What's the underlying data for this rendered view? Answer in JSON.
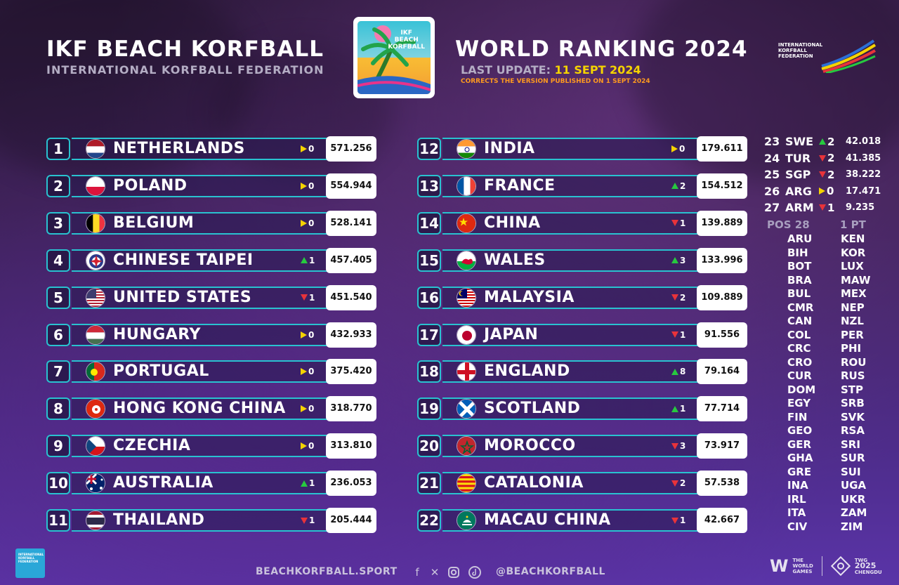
{
  "header": {
    "title_left": "IKF BEACH KORFBALL",
    "subtitle_left": "INTERNATIONAL KORFBALL FEDERATION",
    "title_right": "WORLD RANKING 2024",
    "last_update_label": "LAST UPDATE:",
    "last_update_value": "11 SEPT 2024",
    "correction_note": "CORRECTS THE VERSION PUBLISHED ON 1 SEPT 2024",
    "logo_text_1": "IKF",
    "logo_text_2": "BEACH",
    "logo_text_3": "KORFBALL",
    "ikf_logo_line1": "INTERNATIONAL",
    "ikf_logo_line2": "KORFBALL",
    "ikf_logo_line3": "FEDERATION"
  },
  "colors": {
    "accent": "#29c2d0",
    "up": "#27c93f",
    "down": "#e8333a",
    "same": "#f5d300",
    "correction": "#ff9a1f"
  },
  "rankings_left": [
    {
      "pos": "1",
      "country": "NETHERLANDS",
      "flag": "netherlands-flag-icon",
      "trend": "same",
      "change": "0",
      "points": "571.256"
    },
    {
      "pos": "2",
      "country": "POLAND",
      "flag": "poland-flag-icon",
      "trend": "same",
      "change": "0",
      "points": "554.944"
    },
    {
      "pos": "3",
      "country": "BELGIUM",
      "flag": "belgium-flag-icon",
      "trend": "same",
      "change": "0",
      "points": "528.141"
    },
    {
      "pos": "4",
      "country": "CHINESE TAIPEI",
      "flag": "chinese-taipei-flag-icon",
      "trend": "up",
      "change": "1",
      "points": "457.405"
    },
    {
      "pos": "5",
      "country": "UNITED STATES",
      "flag": "united-states-flag-icon",
      "trend": "down",
      "change": "1",
      "points": "451.540"
    },
    {
      "pos": "6",
      "country": "HUNGARY",
      "flag": "hungary-flag-icon",
      "trend": "same",
      "change": "0",
      "points": "432.933"
    },
    {
      "pos": "7",
      "country": "PORTUGAL",
      "flag": "portugal-flag-icon",
      "trend": "same",
      "change": "0",
      "points": "375.420"
    },
    {
      "pos": "8",
      "country": "HONG KONG CHINA",
      "flag": "hong-kong-flag-icon",
      "trend": "same",
      "change": "0",
      "points": "318.770"
    },
    {
      "pos": "9",
      "country": "CZECHIA",
      "flag": "czechia-flag-icon",
      "trend": "same",
      "change": "0",
      "points": "313.810"
    },
    {
      "pos": "10",
      "country": "AUSTRALIA",
      "flag": "australia-flag-icon",
      "trend": "up",
      "change": "1",
      "points": "236.053"
    },
    {
      "pos": "11",
      "country": "THAILAND",
      "flag": "thailand-flag-icon",
      "trend": "down",
      "change": "1",
      "points": "205.444"
    }
  ],
  "rankings_right": [
    {
      "pos": "12",
      "country": "INDIA",
      "flag": "india-flag-icon",
      "trend": "same",
      "change": "0",
      "points": "179.611"
    },
    {
      "pos": "13",
      "country": "FRANCE",
      "flag": "france-flag-icon",
      "trend": "up",
      "change": "2",
      "points": "154.512"
    },
    {
      "pos": "14",
      "country": "CHINA",
      "flag": "china-flag-icon",
      "trend": "down",
      "change": "1",
      "points": "139.889"
    },
    {
      "pos": "15",
      "country": "WALES",
      "flag": "wales-flag-icon",
      "trend": "up",
      "change": "3",
      "points": "133.996"
    },
    {
      "pos": "16",
      "country": "MALAYSIA",
      "flag": "malaysia-flag-icon",
      "trend": "down",
      "change": "2",
      "points": "109.889"
    },
    {
      "pos": "17",
      "country": "JAPAN",
      "flag": "japan-flag-icon",
      "trend": "down",
      "change": "1",
      "points": "91.556"
    },
    {
      "pos": "18",
      "country": "ENGLAND",
      "flag": "england-flag-icon",
      "trend": "up",
      "change": "8",
      "points": "79.164"
    },
    {
      "pos": "19",
      "country": "SCOTLAND",
      "flag": "scotland-flag-icon",
      "trend": "up",
      "change": "1",
      "points": "77.714"
    },
    {
      "pos": "20",
      "country": "MOROCCO",
      "flag": "morocco-flag-icon",
      "trend": "down",
      "change": "3",
      "points": "73.917"
    },
    {
      "pos": "21",
      "country": "CATALONIA",
      "flag": "catalonia-flag-icon",
      "trend": "down",
      "change": "2",
      "points": "57.538"
    },
    {
      "pos": "22",
      "country": "MACAU CHINA",
      "flag": "macau-flag-icon",
      "trend": "down",
      "change": "1",
      "points": "42.667"
    }
  ],
  "rankings_side": [
    {
      "pos": "23",
      "code": "SWE",
      "trend": "up",
      "change": "2",
      "points": "42.018"
    },
    {
      "pos": "24",
      "code": "TUR",
      "trend": "down",
      "change": "2",
      "points": "41.385"
    },
    {
      "pos": "25",
      "code": "SGP",
      "trend": "down",
      "change": "2",
      "points": "38.222"
    },
    {
      "pos": "26",
      "code": "ARG",
      "trend": "same",
      "change": "0",
      "points": "17.471"
    },
    {
      "pos": "27",
      "code": "ARM",
      "trend": "down",
      "change": "1",
      "points": "9.235"
    }
  ],
  "pos28": {
    "label": "POS 28",
    "points_label": "1 PT",
    "col1": [
      "ARU",
      "BIH",
      "BOT",
      "BRA",
      "BUL",
      "CMR",
      "CAN",
      "COL",
      "CRC",
      "CRO",
      "CUR",
      "DOM",
      "EGY",
      "FIN",
      "GEO",
      "GER",
      "GHA",
      "GRE",
      "INA",
      "IRL",
      "ITA",
      "CIV"
    ],
    "col2": [
      "KEN",
      "KOR",
      "LUX",
      "MAW",
      "MEX",
      "NEP",
      "NZL",
      "PER",
      "PHI",
      "ROU",
      "RUS",
      "STP",
      "SRB",
      "SVK",
      "RSA",
      "SRI",
      "SUR",
      "SUI",
      "UGA",
      "UKR",
      "ZAM",
      "ZIM"
    ]
  },
  "footer": {
    "website": "BEACHKORFBALL.SPORT",
    "handle": "@BEACHKORFBALL",
    "social_icons": [
      "facebook-icon",
      "x-icon",
      "instagram-icon",
      "tiktok-icon"
    ],
    "twg_line1": "THE",
    "twg_line2": "WORLD",
    "twg_line3": "GAMES",
    "chengdu_line1": "TWG",
    "chengdu_year": "2025",
    "chengdu_line2": "CHENGDU",
    "ikf_small_text": "INTERNATIONAL KORFBALL FEDERATION"
  }
}
